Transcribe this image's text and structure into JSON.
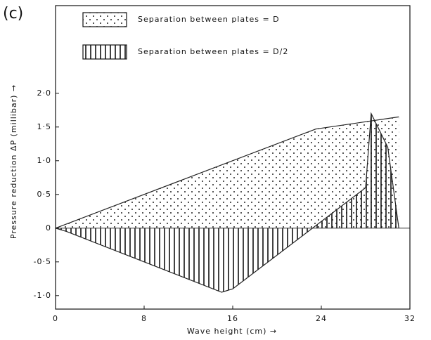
{
  "panel_label": "(c)",
  "chart_data": {
    "type": "area",
    "x_label": "Wave height (cm) →",
    "y_label": "Pressure reduction ΔP (millibar) →",
    "xlim": [
      0,
      32
    ],
    "xticks": [
      0,
      8,
      16,
      24,
      32
    ],
    "ylim": [
      -1.2,
      3.3
    ],
    "yticks": [
      {
        "value": -1.0,
        "label": "-1·0"
      },
      {
        "value": -0.5,
        "label": "-0·5"
      },
      0,
      {
        "value": 0.5,
        "label": "0·5"
      },
      {
        "value": 1.0,
        "label": "1·0"
      },
      {
        "value": 1.5,
        "label": "1·5"
      },
      {
        "value": 2.0,
        "label": "2·0"
      }
    ],
    "series": [
      {
        "name": "Separation between plates = D",
        "color": "#222",
        "fill": "dots",
        "x": [
          0,
          23.5,
          31
        ],
        "values": [
          0,
          1.47,
          1.65
        ]
      },
      {
        "name": "Separation between plates = D/2",
        "color": "#222",
        "fill": "vertical-lines",
        "x": [
          0,
          1,
          15,
          16,
          28,
          28.5,
          30,
          31
        ],
        "values": [
          0,
          -0.05,
          -0.95,
          -0.9,
          0.6,
          1.7,
          1.2,
          0.0
        ]
      }
    ]
  }
}
